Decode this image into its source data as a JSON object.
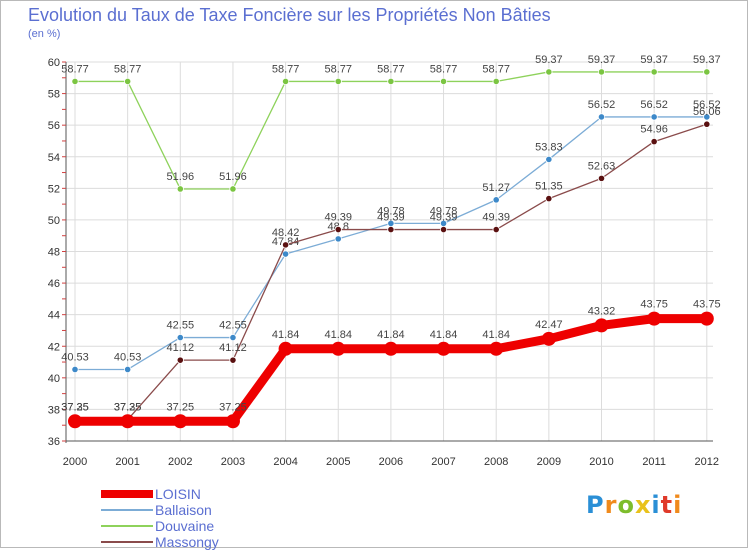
{
  "title": "Evolution du Taux de Taxe Foncière sur les Propriétés Non Bâties",
  "unit_label": "(en %)",
  "logo": {
    "letters": [
      "P",
      "r",
      "o",
      "x",
      "i",
      "t",
      "i"
    ],
    "colors": [
      "#2a8fd6",
      "#f08a1c",
      "#7dbd2c",
      "#e9c21b",
      "#2a8fd6",
      "#e03a2a",
      "#f08a1c"
    ]
  },
  "chart_data": {
    "type": "line",
    "x": [
      2000,
      2001,
      2002,
      2003,
      2004,
      2005,
      2006,
      2007,
      2008,
      2009,
      2010,
      2011,
      2012
    ],
    "ylim": [
      36,
      60
    ],
    "yticks": [
      36,
      38,
      40,
      42,
      44,
      46,
      48,
      50,
      52,
      54,
      56,
      58,
      60
    ],
    "grid": true,
    "legend_position": "bottom-left",
    "series": [
      {
        "name": "Douvaine",
        "color": "#8ed25b",
        "marker": "#7bc542",
        "values": [
          58.77,
          58.77,
          51.96,
          51.96,
          58.77,
          58.77,
          58.77,
          58.77,
          58.77,
          59.37,
          59.37,
          59.37,
          59.37
        ],
        "labels": [
          "58.77",
          "58.77",
          "51.96",
          "51.96",
          "58.77",
          "58.77",
          "58.77",
          "58.77",
          "58.77",
          "59.37",
          "59.37",
          "59.37",
          "59.37"
        ]
      },
      {
        "name": "Ballaison",
        "color": "#7cacd6",
        "marker": "#3d89c9",
        "values": [
          40.53,
          40.53,
          42.55,
          42.55,
          47.84,
          48.8,
          49.78,
          49.78,
          51.27,
          53.83,
          56.52,
          56.52,
          56.52
        ],
        "labels": [
          "40.53",
          "40.53",
          "42.55",
          "42.55",
          "47.84",
          "48.8",
          "49.78",
          "49.78",
          "51.27",
          "53.83",
          "56.52",
          "56.52",
          "56.52"
        ]
      },
      {
        "name": "Massongy",
        "color": "#8a4b4b",
        "marker": "#5a1010",
        "values": [
          37.35,
          37.35,
          41.12,
          41.12,
          48.42,
          49.39,
          49.39,
          49.39,
          49.39,
          51.35,
          52.63,
          54.96,
          56.06
        ],
        "labels": [
          "37.35",
          "37.35",
          "41.12",
          "41.12",
          "48.42",
          "49.39",
          "49.39",
          "49.39",
          "49.39",
          "51.35",
          "52.63",
          "54.96",
          "56.06"
        ]
      },
      {
        "name": "LOISIN",
        "color": "#ee0000",
        "marker": "#ee0000",
        "values": [
          37.25,
          37.25,
          37.25,
          37.25,
          41.84,
          41.84,
          41.84,
          41.84,
          41.84,
          42.47,
          43.32,
          43.75,
          43.75
        ],
        "labels": [
          "37.25",
          "37.25",
          "37.25",
          "37.25",
          "41.84",
          "41.84",
          "41.84",
          "41.84",
          "41.84",
          "42.47",
          "43.32",
          "43.75",
          "43.75"
        ]
      }
    ],
    "legend_order": [
      "LOISIN",
      "Ballaison",
      "Douvaine",
      "Massongy"
    ]
  }
}
